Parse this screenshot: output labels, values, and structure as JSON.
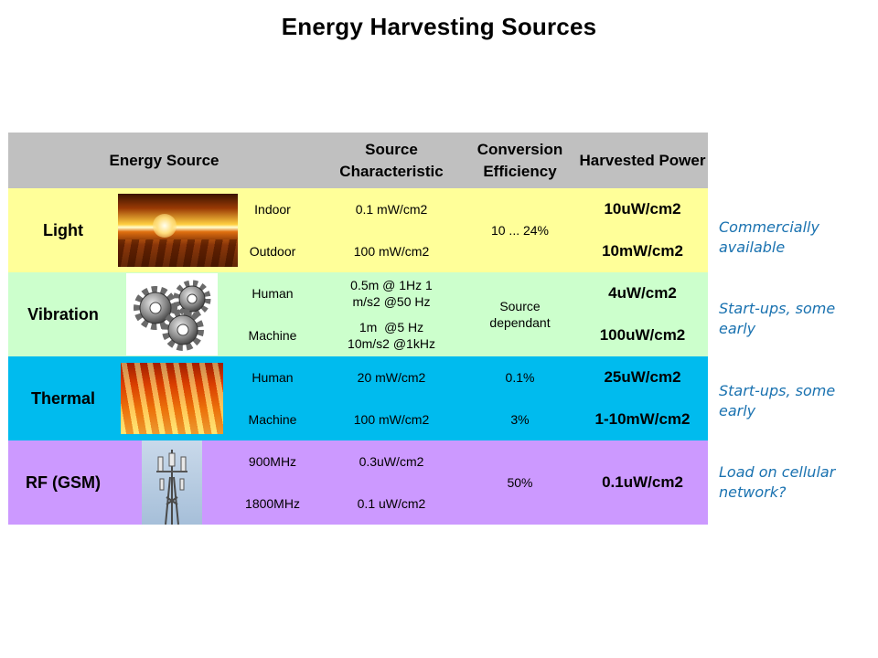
{
  "title": "Energy Harvesting Sources",
  "header": {
    "energy_source": "Energy Source",
    "source_characteristic": "Source Characteristic",
    "conversion_efficiency": "Conversion Efficiency",
    "harvested_power": "Harvested Power"
  },
  "rows": [
    {
      "name": "Light",
      "image": "sunset-image",
      "efficiency": "10 ... 24%",
      "color": "#ffff99",
      "note": "Commercially available",
      "subrows": [
        {
          "condition": "Indoor",
          "characteristic": "0.1 mW/cm2",
          "power": "10uW/cm2"
        },
        {
          "condition": "Outdoor",
          "characteristic": "100 mW/cm2",
          "power": "10mW/cm2"
        }
      ]
    },
    {
      "name": "Vibration",
      "image": "gears-image",
      "efficiency": "Source dependant",
      "color": "#ccffcc",
      "note": "Start-ups, some early",
      "subrows": [
        {
          "condition": "Human",
          "characteristic": "0.5m @ 1Hz 1 m/s2 @50 Hz",
          "power": "4uW/cm2"
        },
        {
          "condition": "Machine",
          "characteristic": "1m  @5 Hz 10m/s2 @1kHz",
          "power": "100uW/cm2"
        }
      ]
    },
    {
      "name": "Thermal",
      "image": "fire-image",
      "color": "#00bbee",
      "note": "Start-ups, some early",
      "subrows": [
        {
          "condition": "Human",
          "characteristic": "20 mW/cm2",
          "efficiency": "0.1%",
          "power": "25uW/cm2"
        },
        {
          "condition": "Machine",
          "characteristic": "100 mW/cm2",
          "efficiency": "3%",
          "power": "1-10mW/cm2"
        }
      ]
    },
    {
      "name": "RF (GSM)",
      "image": "cell-tower-image",
      "efficiency": "50%",
      "power": "0.1uW/cm2",
      "color": "#cc99ff",
      "note": "Load on cellular network?",
      "subrows": [
        {
          "condition": "900MHz",
          "characteristic": "0.3uW/cm2"
        },
        {
          "condition": "1800MHz",
          "characteristic": "0.1 uW/cm2"
        }
      ]
    }
  ]
}
